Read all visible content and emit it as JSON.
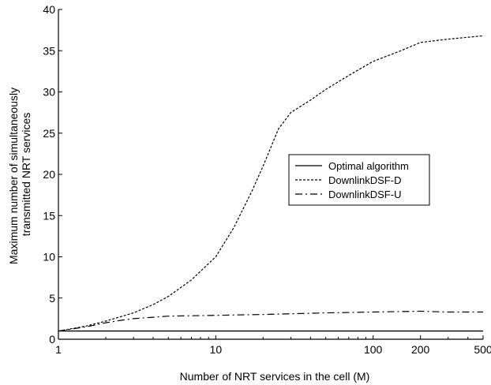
{
  "chart_data": {
    "type": "line",
    "title": "",
    "xlabel": "Number of NRT services in the cell (M)",
    "ylabel": [
      "Maximum number of simultaneously",
      "transmitted NRT services"
    ],
    "xscale": "log",
    "xlim": [
      1,
      500
    ],
    "ylim": [
      0,
      40
    ],
    "x_ticks": [
      {
        "value": 1,
        "label": "1"
      },
      {
        "value": 10,
        "label": "10"
      },
      {
        "value": 100,
        "label": "100"
      },
      {
        "value": 200,
        "label": "200"
      },
      {
        "value": 500,
        "label": "500"
      }
    ],
    "y_ticks": [
      {
        "value": 0,
        "label": "0"
      },
      {
        "value": 5,
        "label": "5"
      },
      {
        "value": 10,
        "label": "10"
      },
      {
        "value": 15,
        "label": "15"
      },
      {
        "value": 20,
        "label": "20"
      },
      {
        "value": 25,
        "label": "25"
      },
      {
        "value": 30,
        "label": "30"
      },
      {
        "value": 35,
        "label": "35"
      },
      {
        "value": 40,
        "label": "40"
      }
    ],
    "legend_position": "right-middle",
    "series": [
      {
        "name": "Optimal algorithm",
        "style": "solid",
        "x": [
          1,
          2,
          5,
          10,
          20,
          50,
          100,
          200,
          500
        ],
        "y": [
          1,
          1,
          1,
          1,
          1,
          1,
          1,
          1,
          1
        ]
      },
      {
        "name": "DownlinkDSF-D",
        "style": "dotted",
        "x": [
          1,
          1.5,
          2,
          3,
          4,
          5,
          7,
          10,
          13,
          17,
          20,
          25,
          30,
          40,
          50,
          70,
          100,
          150,
          200,
          300,
          500
        ],
        "y": [
          1,
          1.6,
          2.2,
          3.2,
          4.2,
          5.2,
          7.2,
          10,
          13.5,
          18,
          21,
          25.5,
          27.5,
          29,
          30.3,
          32,
          33.7,
          35,
          36,
          36.4,
          36.8
        ]
      },
      {
        "name": "DownlinkDSF-U",
        "style": "dashdot",
        "x": [
          1,
          1.5,
          2,
          2.5,
          3,
          5,
          10,
          20,
          50,
          100,
          200,
          300,
          500
        ],
        "y": [
          1,
          1.5,
          2.0,
          2.3,
          2.5,
          2.8,
          2.9,
          3.0,
          3.2,
          3.3,
          3.4,
          3.3,
          3.3
        ]
      }
    ]
  }
}
